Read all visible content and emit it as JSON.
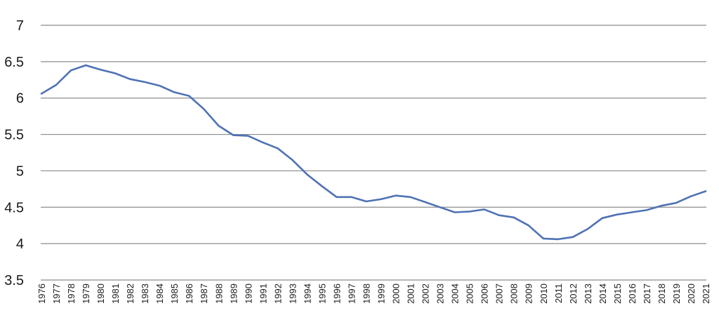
{
  "chart_data": {
    "type": "line",
    "title": "",
    "xlabel": "",
    "ylabel": "",
    "ylim": [
      3.5,
      7
    ],
    "yticks": [
      "3.5",
      "4",
      "4.5",
      "5",
      "5.5",
      "6",
      "6.5",
      "7"
    ],
    "grid": true,
    "legend": "none",
    "colors": {
      "line": "#4f72b5",
      "grid": "#8c8c8c",
      "text": "#1a1a1a"
    },
    "x": [
      "1976",
      "1977",
      "1978",
      "1979",
      "1980",
      "1981",
      "1982",
      "1983",
      "1984",
      "1985",
      "1986",
      "1987",
      "1988",
      "1989",
      "1990",
      "1991",
      "1992",
      "1993",
      "1994",
      "1995",
      "1996",
      "1997",
      "1998",
      "1999",
      "2000",
      "2001",
      "2002",
      "2003",
      "2004",
      "2005",
      "2006",
      "2007",
      "2008",
      "2009",
      "2010",
      "2011",
      "2012",
      "2013",
      "2014",
      "2015",
      "2016",
      "2017",
      "2018",
      "2019",
      "2020",
      "2021"
    ],
    "series": [
      {
        "values": [
          6.06,
          6.18,
          6.38,
          6.45,
          6.39,
          6.34,
          6.26,
          6.22,
          6.17,
          6.08,
          6.03,
          5.85,
          5.62,
          5.49,
          5.48,
          5.39,
          5.31,
          5.15,
          4.95,
          4.79,
          4.64,
          4.64,
          4.58,
          4.61,
          4.66,
          4.64,
          4.57,
          4.5,
          4.43,
          4.44,
          4.47,
          4.39,
          4.36,
          4.25,
          4.07,
          4.06,
          4.09,
          4.2,
          4.35,
          4.4,
          4.43,
          4.46,
          4.52,
          4.56,
          4.65,
          4.72
        ]
      }
    ]
  }
}
